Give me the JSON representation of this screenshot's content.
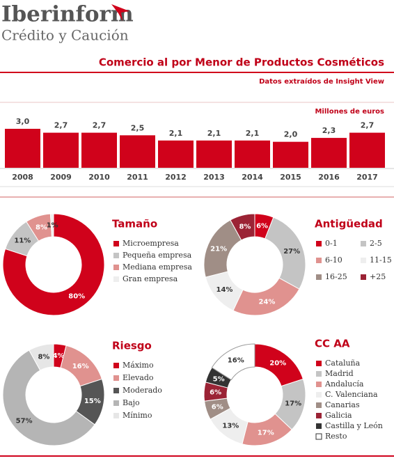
{
  "header": {
    "brand": "Iberinform",
    "tagline": "Crédito y Caución",
    "title": "Comercio al por Menor de Productos Cosméticos",
    "subtitle": "Datos extraídos de Insight View"
  },
  "chart_data": [
    {
      "type": "bar",
      "unit_label": "Millones de euros",
      "categories": [
        "2008",
        "2009",
        "2010",
        "2011",
        "2012",
        "2013",
        "2014",
        "2015",
        "2016",
        "2017"
      ],
      "values": [
        3.0,
        2.7,
        2.7,
        2.5,
        2.1,
        2.1,
        2.1,
        2.0,
        2.3,
        2.7
      ],
      "value_labels": [
        "3,0",
        "2,7",
        "2,7",
        "2,5",
        "2,1",
        "2,1",
        "2,1",
        "2,0",
        "2,3",
        "2,7"
      ],
      "color": "#d0021b"
    },
    {
      "type": "donut",
      "title": "Tamaño",
      "categories": [
        "Microempresa",
        "Pequeña empresa",
        "Mediana empresa",
        "Gran empresa"
      ],
      "values": [
        80,
        11,
        8,
        1
      ],
      "value_labels": [
        "80%",
        "11%",
        "8%",
        "1%"
      ],
      "colors": [
        "#d0021b",
        "#c4c4c4",
        "#e0928f",
        "#eeeeee"
      ],
      "legend_columns": 1
    },
    {
      "type": "donut",
      "title": "Antigüedad",
      "categories": [
        "0-1",
        "2-5",
        "6-10",
        "11-15",
        "16-25",
        "+25"
      ],
      "values": [
        6,
        27,
        24,
        14,
        21,
        8
      ],
      "value_labels": [
        "6%",
        "27%",
        "24%",
        "14%",
        "21%",
        "8%"
      ],
      "colors": [
        "#d0021b",
        "#c4c4c4",
        "#e0928f",
        "#eeeeee",
        "#a08e86",
        "#9b2335"
      ],
      "legend_columns": 2
    },
    {
      "type": "donut",
      "title": "Riesgo",
      "categories": [
        "Máximo",
        "Elevado",
        "Moderado",
        "Bajo",
        "Mínimo"
      ],
      "values": [
        4,
        16,
        15,
        57,
        8
      ],
      "value_labels": [
        "4%",
        "16%",
        "15%",
        "57%",
        "8%"
      ],
      "colors": [
        "#d0021b",
        "#e0928f",
        "#555555",
        "#b5b5b5",
        "#e6e6e6"
      ],
      "legend_columns": 1
    },
    {
      "type": "donut",
      "title": "CC AA",
      "categories": [
        "Cataluña",
        "Madrid",
        "Andalucía",
        "C. Valenciana",
        "Canarias",
        "Galicia",
        "Castilla y León",
        "Resto"
      ],
      "values": [
        20,
        17,
        17,
        13,
        6,
        6,
        5,
        16
      ],
      "value_labels": [
        "20%",
        "17%",
        "17%",
        "13%",
        "6%",
        "6%",
        "5%",
        "16%"
      ],
      "colors": [
        "#d0021b",
        "#c4c4c4",
        "#e0928f",
        "#eeeeee",
        "#a08e86",
        "#9b2335",
        "#333333",
        "#ffffff"
      ],
      "legend_columns": 1
    }
  ]
}
